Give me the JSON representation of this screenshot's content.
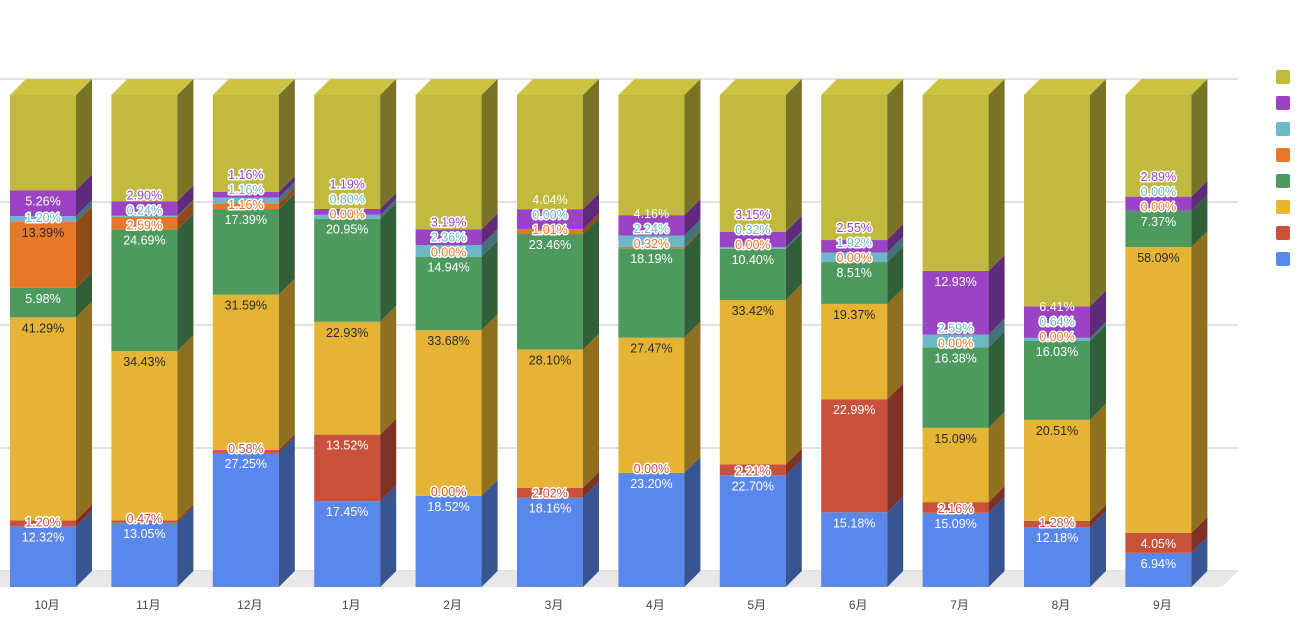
{
  "chart_data": {
    "type": "bar",
    "stacked": "100%",
    "style": "3d",
    "title": "",
    "xlabel": "",
    "ylabel": "",
    "ylim": [
      0,
      100
    ],
    "grid": true,
    "legend_position": "right",
    "categories": [
      "10月",
      "11月",
      "12月",
      "1月",
      "2月",
      "3月",
      "4月",
      "5月",
      "6月",
      "7月",
      "8月",
      "9月"
    ],
    "series": [
      {
        "color": "#5a87ea",
        "values": [
          12.32,
          13.05,
          27.25,
          17.45,
          18.52,
          18.16,
          23.2,
          22.7,
          15.18,
          15.09,
          12.18,
          6.94
        ]
      },
      {
        "color": "#c9513c",
        "values": [
          1.2,
          0.47,
          0.58,
          13.52,
          0.0,
          2.02,
          0.0,
          2.21,
          22.99,
          2.16,
          1.28,
          4.05
        ]
      },
      {
        "color": "#e6b434",
        "values": [
          41.29,
          34.43,
          31.59,
          22.93,
          33.68,
          28.1,
          27.47,
          33.42,
          19.37,
          15.09,
          20.51,
          58.09
        ]
      },
      {
        "color": "#4e9a5e",
        "values": [
          5.98,
          24.69,
          17.39,
          20.95,
          14.94,
          23.46,
          18.19,
          10.4,
          8.51,
          16.38,
          16.03,
          7.37
        ]
      },
      {
        "color": "#e8772a",
        "values": [
          13.39,
          2.59,
          1.16,
          0.0,
          0.0,
          1.01,
          0.32,
          0.0,
          0.0,
          0.0,
          0.0,
          0.0
        ]
      },
      {
        "color": "#6cb8c6",
        "values": [
          1.2,
          0.24,
          1.16,
          0.8,
          2.36,
          0.0,
          2.24,
          0.32,
          1.92,
          2.59,
          0.64,
          0.0
        ]
      },
      {
        "color": "#9a44c4",
        "values": [
          5.26,
          2.9,
          1.16,
          1.19,
          3.19,
          4.04,
          4.16,
          3.15,
          2.55,
          12.93,
          6.41,
          2.89
        ]
      },
      {
        "color": "#c1ba3e",
        "values": [
          19.36,
          21.63,
          19.71,
          23.16,
          27.31,
          23.21,
          24.42,
          27.8,
          29.48,
          35.76,
          42.95,
          20.66
        ],
        "labels_shown": false
      }
    ]
  }
}
